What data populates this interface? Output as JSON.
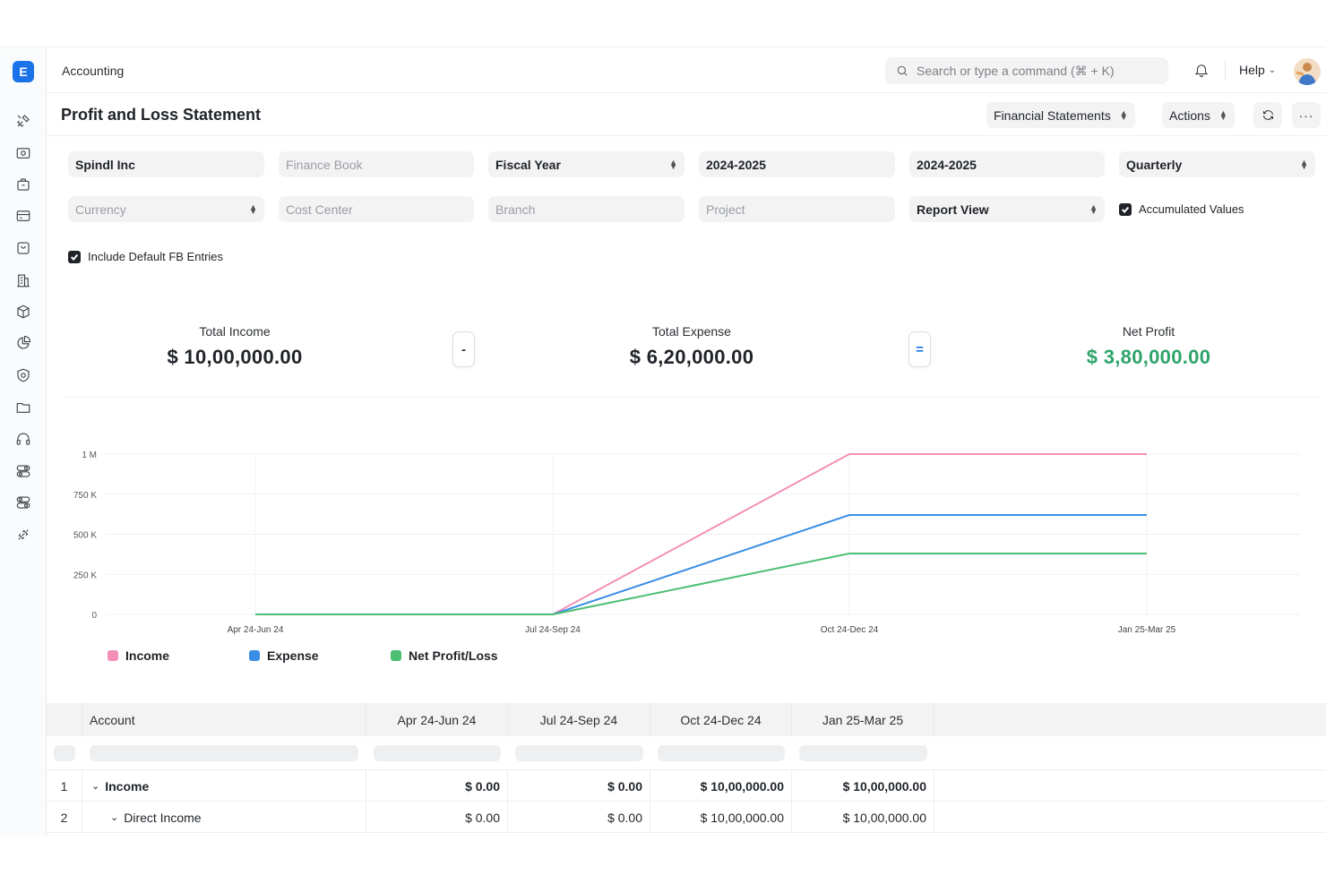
{
  "app": {
    "breadcrumb": "Accounting",
    "logo_letter": "E",
    "search_placeholder": "Search or type a command (⌘ + K)",
    "help_label": "Help"
  },
  "sidebar": {
    "icons": [
      "tools-icon",
      "eye-icon",
      "briefcase-icon",
      "card-icon",
      "bag-icon",
      "building-icon",
      "package-icon",
      "piechart-icon",
      "shield-icon",
      "folder-icon",
      "headset-icon",
      "toggle-icon",
      "toggle-alt-icon",
      "link-icon"
    ]
  },
  "header": {
    "title": "Profit and Loss Statement",
    "financial_statements_label": "Financial Statements",
    "actions_label": "Actions"
  },
  "filters": {
    "company": "Spindl Inc",
    "finance_book_placeholder": "Finance Book",
    "period_based_on": "Fiscal Year",
    "from_fiscal_year": "2024-2025",
    "to_fiscal_year": "2024-2025",
    "periodicity": "Quarterly",
    "currency_placeholder": "Currency",
    "cost_center_placeholder": "Cost Center",
    "branch_placeholder": "Branch",
    "project_placeholder": "Project",
    "report_view": "Report View",
    "accumulated_values_label": "Accumulated Values",
    "accumulated_values_checked": true,
    "include_default_fb_label": "Include Default FB Entries",
    "include_default_fb_checked": true
  },
  "summary": {
    "income_label": "Total Income",
    "income_value": "$ 10,00,000.00",
    "minus_symbol": "-",
    "expense_label": "Total Expense",
    "expense_value": "$ 6,20,000.00",
    "equals_symbol": "=",
    "profit_label": "Net Profit",
    "profit_value": "$ 3,80,000.00"
  },
  "chart_data": {
    "type": "line",
    "categories": [
      "Apr 24-Jun 24",
      "Jul 24-Sep 24",
      "Oct 24-Dec 24",
      "Jan 25-Mar 25"
    ],
    "y_ticks": [
      "0",
      "250 K",
      "500 K",
      "750 K",
      "1 M"
    ],
    "ylim": [
      0,
      1000000
    ],
    "series": [
      {
        "name": "Income",
        "color": "#f48fb8",
        "values": [
          0,
          0,
          1000000,
          1000000
        ]
      },
      {
        "name": "Expense",
        "color": "#3a8ee6",
        "values": [
          0,
          0,
          620000,
          620000
        ]
      },
      {
        "name": "Net Profit/Loss",
        "color": "#4cbf73",
        "values": [
          0,
          0,
          380000,
          380000
        ]
      }
    ],
    "legend_position": "bottom-left",
    "grid": true
  },
  "table": {
    "headers": [
      "Account",
      "Apr 24-Jun 24",
      "Jul 24-Sep 24",
      "Oct 24-Dec 24",
      "Jan 25-Mar 25"
    ],
    "rows": [
      {
        "index": "1",
        "account": "Income",
        "values": [
          "$ 0.00",
          "$ 0.00",
          "$ 10,00,000.00",
          "$ 10,00,000.00"
        ]
      },
      {
        "index": "2",
        "account": "Direct Income",
        "values": [
          "$ 0.00",
          "$ 0.00",
          "$ 10,00,000.00",
          "$ 10,00,000.00"
        ]
      }
    ]
  }
}
